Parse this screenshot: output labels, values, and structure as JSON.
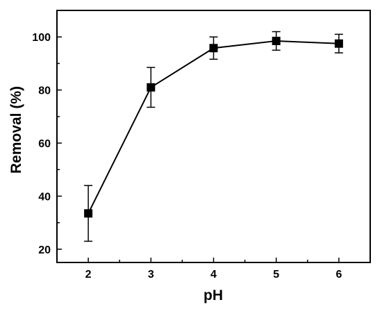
{
  "chart_data": {
    "type": "line",
    "xlabel": "pH",
    "ylabel": "Removal (%)",
    "xlim": [
      1.5,
      6.5
    ],
    "ylim": [
      15,
      110
    ],
    "xticks": [
      2,
      3,
      4,
      5,
      6
    ],
    "yticks": [
      20,
      40,
      60,
      80,
      100
    ],
    "xtick_labels": [
      "2",
      "3",
      "4",
      "5",
      "6"
    ],
    "ytick_labels": [
      "20",
      "40",
      "60",
      "80",
      "100"
    ],
    "grid": false,
    "legend": "none",
    "marker": "square",
    "series": [
      {
        "x": [
          2,
          3,
          4,
          5,
          6
        ],
        "y": [
          33.5,
          81,
          95.8,
          98.5,
          97.5
        ],
        "error": [
          10.5,
          7.5,
          4.2,
          3.5,
          3.5
        ],
        "color": "#000000"
      }
    ]
  }
}
